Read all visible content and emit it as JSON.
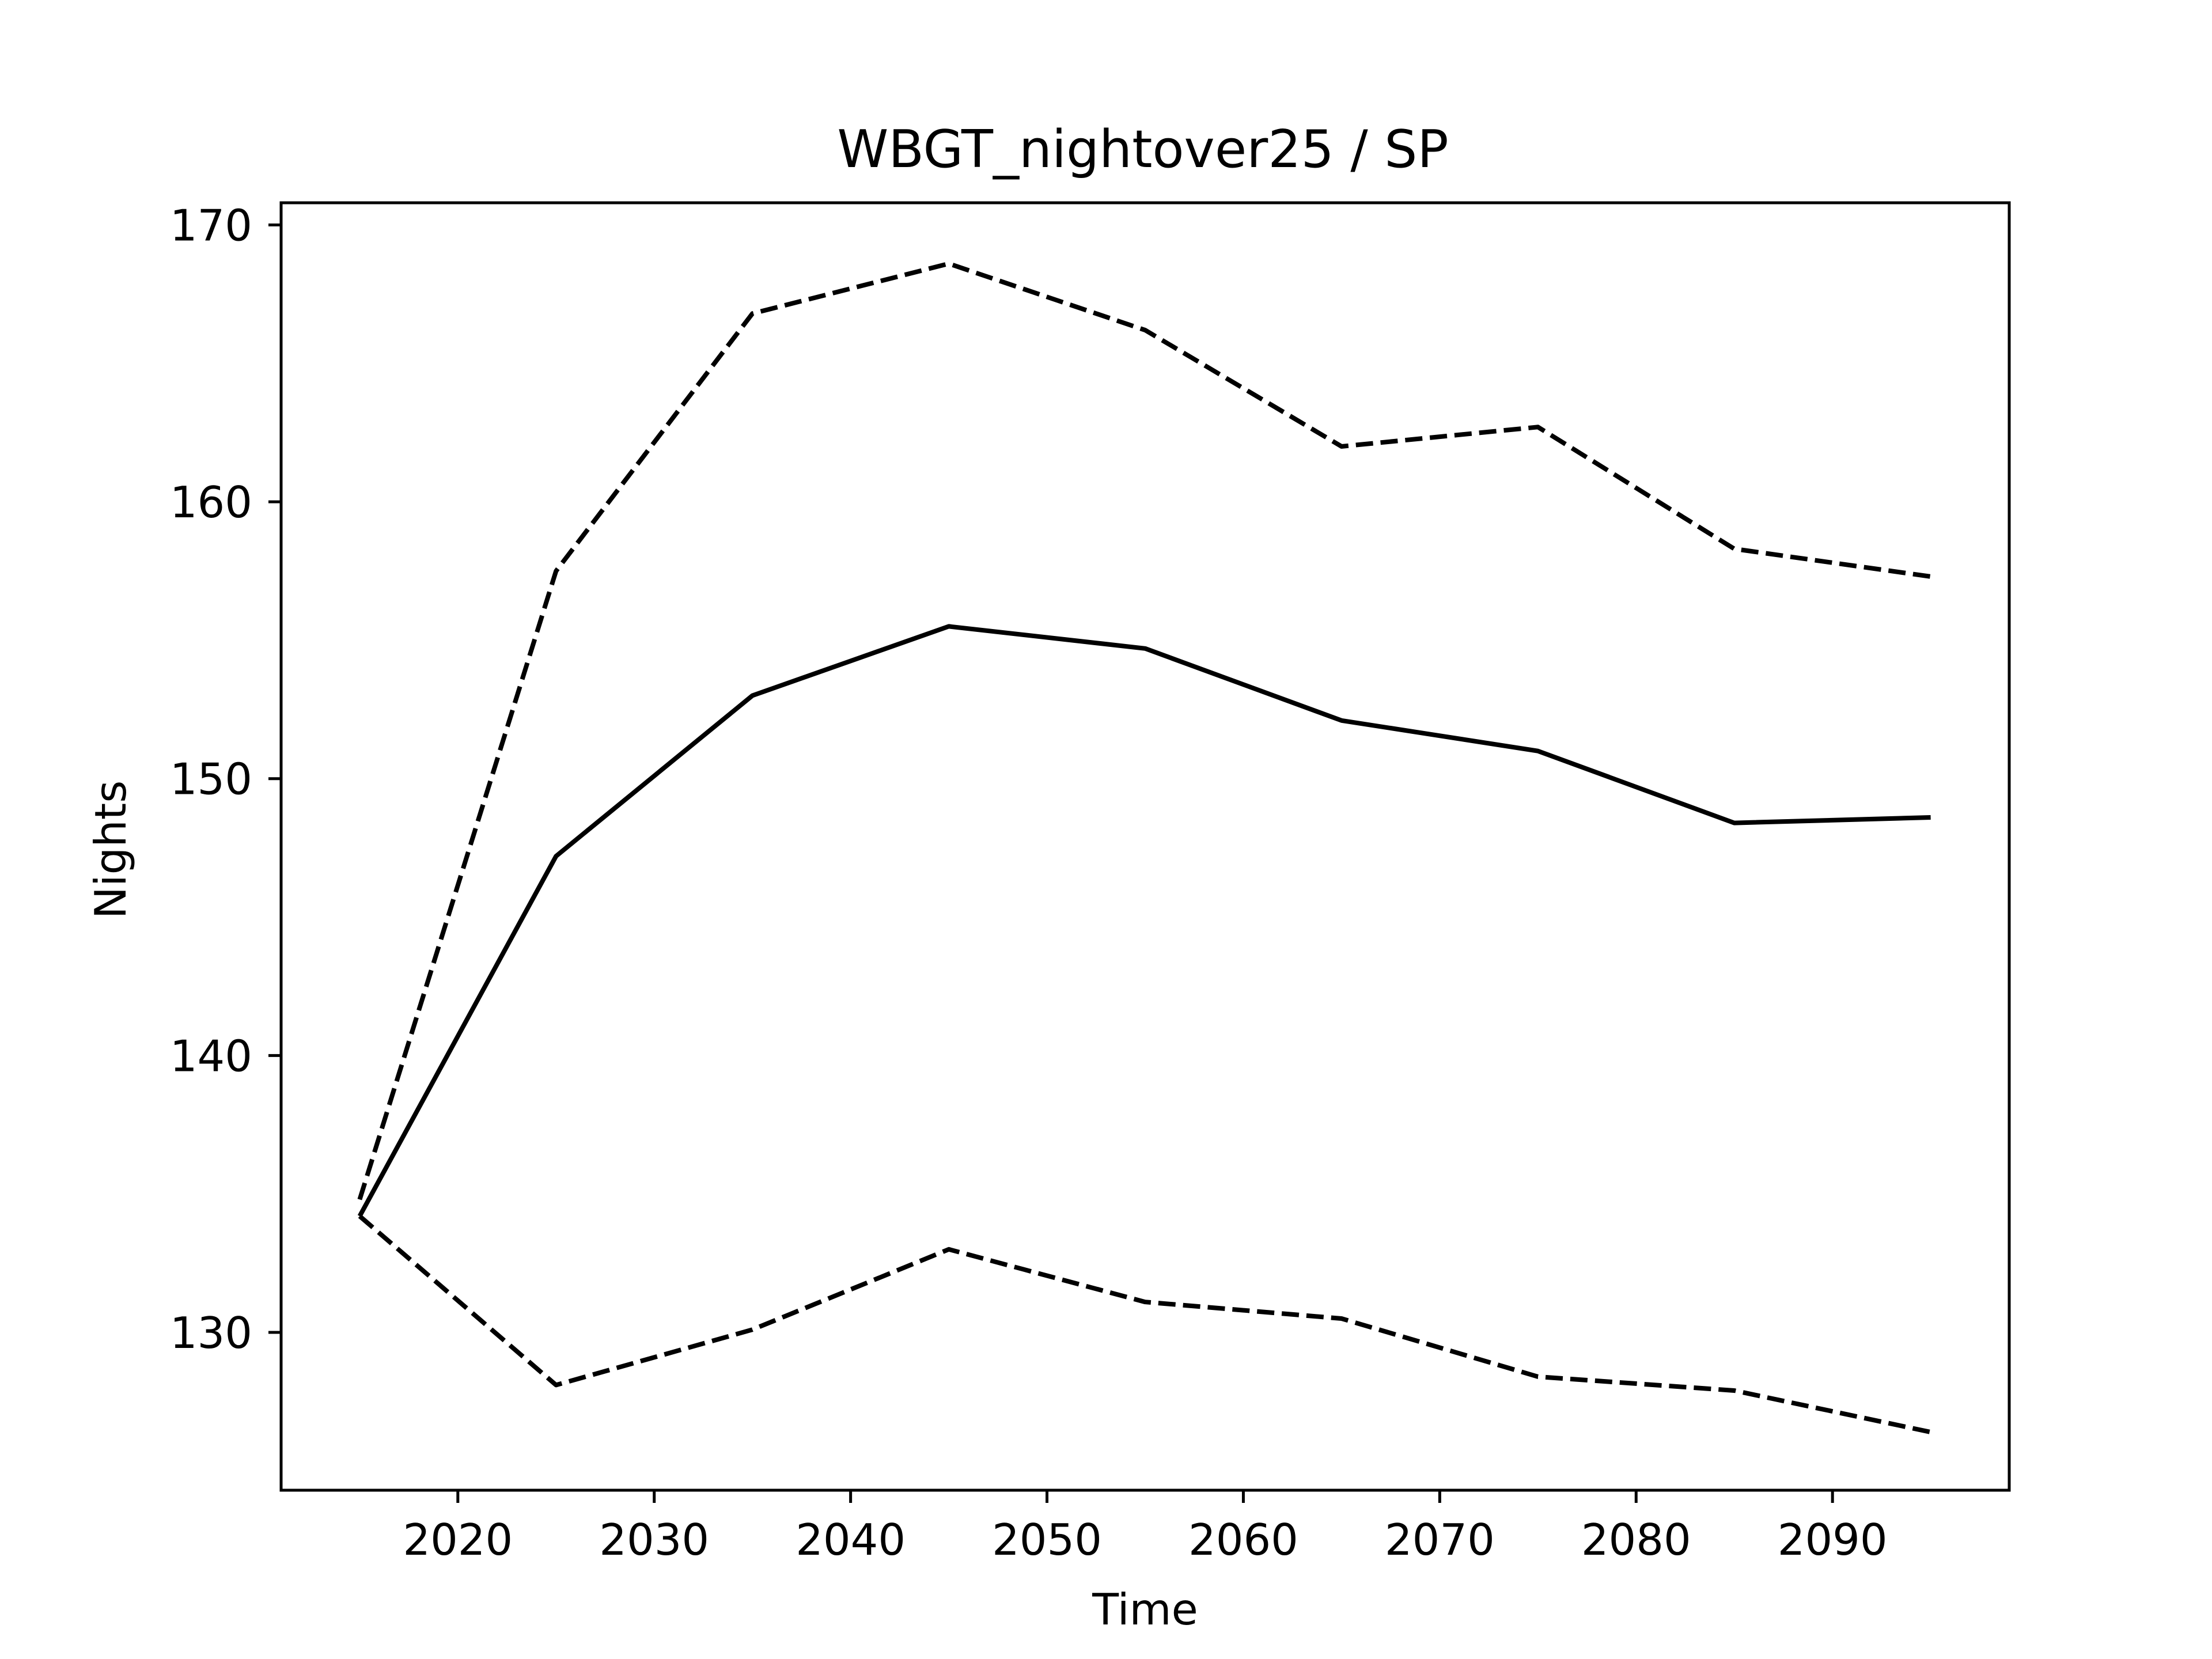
{
  "chart_data": {
    "type": "line",
    "title": "WBGT_nightover25 / SP",
    "xlabel": "Time",
    "ylabel": "Nights",
    "xlim": [
      2011,
      2099
    ],
    "ylim": [
      124.3,
      170.8
    ],
    "xticks": [
      2020,
      2030,
      2040,
      2050,
      2060,
      2070,
      2080,
      2090
    ],
    "yticks": [
      130,
      140,
      150,
      160,
      170
    ],
    "grid": false,
    "legend": "none",
    "line_color": "#000000",
    "x": [
      2015,
      2025,
      2035,
      2045,
      2055,
      2065,
      2075,
      2085,
      2095
    ],
    "series": [
      {
        "style": "solid",
        "values": [
          134.2,
          147.2,
          153.0,
          155.5,
          154.7,
          152.1,
          151.0,
          148.4,
          148.6
        ]
      },
      {
        "style": "dashed",
        "values": [
          134.8,
          157.5,
          166.8,
          168.6,
          166.2,
          162.0,
          162.7,
          158.3,
          157.3
        ]
      },
      {
        "style": "dashed",
        "values": [
          134.2,
          128.1,
          130.1,
          133.0,
          131.1,
          130.5,
          128.4,
          127.9,
          126.4
        ]
      }
    ]
  }
}
